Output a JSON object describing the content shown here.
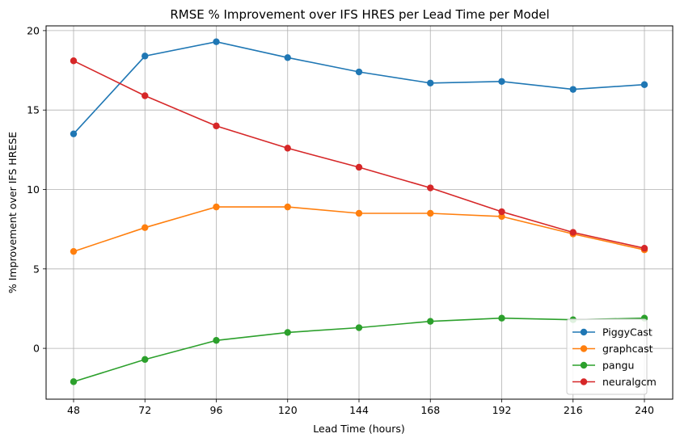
{
  "chart_data": {
    "type": "line",
    "title": "RMSE % Improvement over IFS HRES per Lead Time per Model",
    "xlabel": "Lead Time (hours)",
    "ylabel": "% Improvement over IFS HRESE",
    "x": [
      48,
      72,
      96,
      120,
      144,
      168,
      192,
      216,
      240
    ],
    "x_tick_labels": [
      "48",
      "72",
      "96",
      "120",
      "144",
      "168",
      "192",
      "216",
      "240"
    ],
    "y_ticks": [
      0,
      5,
      10,
      15,
      20
    ],
    "y_tick_labels": [
      "0",
      "5",
      "10",
      "15",
      "20"
    ],
    "ylim": [
      -3.2,
      20.3
    ],
    "grid": true,
    "legend_position": "lower-right",
    "series": [
      {
        "name": "PiggyCast",
        "color": "#1f77b4",
        "values": [
          13.5,
          18.4,
          19.3,
          18.3,
          17.4,
          16.7,
          16.8,
          16.3,
          16.6
        ]
      },
      {
        "name": "graphcast",
        "color": "#ff7f0e",
        "values": [
          6.1,
          7.6,
          8.9,
          8.9,
          8.5,
          8.5,
          8.3,
          7.2,
          6.2
        ]
      },
      {
        "name": "pangu",
        "color": "#2ca02c",
        "values": [
          -2.1,
          -0.7,
          0.5,
          1.0,
          1.3,
          1.7,
          1.9,
          1.8,
          1.9
        ]
      },
      {
        "name": "neuralgcm",
        "color": "#d62728",
        "values": [
          18.1,
          15.9,
          14.0,
          12.6,
          11.4,
          10.1,
          8.6,
          7.3,
          6.3
        ]
      }
    ]
  }
}
